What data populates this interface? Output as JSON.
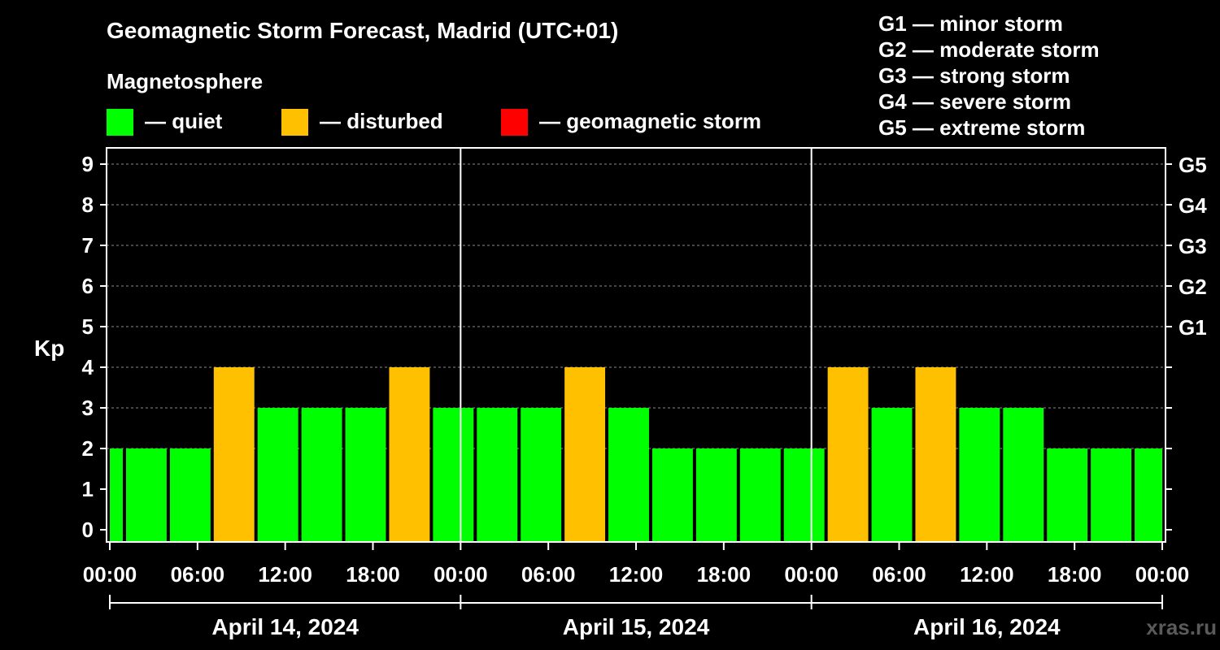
{
  "title": "Geomagnetic Storm Forecast, Madrid (UTC+01)",
  "subtitle": "Magnetosphere",
  "legend": [
    {
      "label": "— quiet",
      "color": "#00ff00"
    },
    {
      "label": "— disturbed",
      "color": "#ffc000"
    },
    {
      "label": "— geomagnetic storm",
      "color": "#ff0000"
    }
  ],
  "storm_levels": [
    "G1 — minor storm",
    "G2 — moderate storm",
    "G3 — strong storm",
    "G4 — severe storm",
    "G5 — extreme storm"
  ],
  "watermark": "xras.ru",
  "chart_data": {
    "type": "bar",
    "ylabel": "Kp",
    "ylim": [
      0,
      9
    ],
    "yticks": [
      0,
      1,
      2,
      3,
      4,
      5,
      6,
      7,
      8,
      9
    ],
    "right_axis_labels": [
      {
        "kp": 5,
        "label": "G1"
      },
      {
        "kp": 6,
        "label": "G2"
      },
      {
        "kp": 7,
        "label": "G3"
      },
      {
        "kp": 8,
        "label": "G4"
      },
      {
        "kp": 9,
        "label": "G5"
      }
    ],
    "xlim_hours": [
      0,
      72
    ],
    "xticks": [
      {
        "hour": 0,
        "label": "00:00"
      },
      {
        "hour": 6,
        "label": "06:00"
      },
      {
        "hour": 12,
        "label": "12:00"
      },
      {
        "hour": 18,
        "label": "18:00"
      },
      {
        "hour": 24,
        "label": "00:00"
      },
      {
        "hour": 30,
        "label": "06:00"
      },
      {
        "hour": 36,
        "label": "12:00"
      },
      {
        "hour": 42,
        "label": "18:00"
      },
      {
        "hour": 48,
        "label": "00:00"
      },
      {
        "hour": 54,
        "label": "06:00"
      },
      {
        "hour": 60,
        "label": "12:00"
      },
      {
        "hour": 66,
        "label": "18:00"
      },
      {
        "hour": 72,
        "label": "00:00"
      }
    ],
    "days": [
      "April 14, 2024",
      "April 15, 2024",
      "April 16, 2024"
    ],
    "grid": "horizontal dashed",
    "bars": [
      {
        "start": 0,
        "end": 1,
        "kp": 2,
        "status": "quiet"
      },
      {
        "start": 1,
        "end": 4,
        "kp": 2,
        "status": "quiet"
      },
      {
        "start": 4,
        "end": 7,
        "kp": 2,
        "status": "quiet"
      },
      {
        "start": 7,
        "end": 10,
        "kp": 4,
        "status": "disturbed"
      },
      {
        "start": 10,
        "end": 13,
        "kp": 3,
        "status": "quiet"
      },
      {
        "start": 13,
        "end": 16,
        "kp": 3,
        "status": "quiet"
      },
      {
        "start": 16,
        "end": 19,
        "kp": 3,
        "status": "quiet"
      },
      {
        "start": 19,
        "end": 22,
        "kp": 4,
        "status": "disturbed"
      },
      {
        "start": 22,
        "end": 25,
        "kp": 3,
        "status": "quiet"
      },
      {
        "start": 25,
        "end": 28,
        "kp": 3,
        "status": "quiet"
      },
      {
        "start": 28,
        "end": 31,
        "kp": 3,
        "status": "quiet"
      },
      {
        "start": 31,
        "end": 34,
        "kp": 4,
        "status": "disturbed"
      },
      {
        "start": 34,
        "end": 37,
        "kp": 3,
        "status": "quiet"
      },
      {
        "start": 37,
        "end": 40,
        "kp": 2,
        "status": "quiet"
      },
      {
        "start": 40,
        "end": 43,
        "kp": 2,
        "status": "quiet"
      },
      {
        "start": 43,
        "end": 46,
        "kp": 2,
        "status": "quiet"
      },
      {
        "start": 46,
        "end": 49,
        "kp": 2,
        "status": "quiet"
      },
      {
        "start": 49,
        "end": 52,
        "kp": 4,
        "status": "disturbed"
      },
      {
        "start": 52,
        "end": 55,
        "kp": 3,
        "status": "quiet"
      },
      {
        "start": 55,
        "end": 58,
        "kp": 4,
        "status": "disturbed"
      },
      {
        "start": 58,
        "end": 61,
        "kp": 3,
        "status": "quiet"
      },
      {
        "start": 61,
        "end": 64,
        "kp": 3,
        "status": "quiet"
      },
      {
        "start": 64,
        "end": 67,
        "kp": 2,
        "status": "quiet"
      },
      {
        "start": 67,
        "end": 70,
        "kp": 2,
        "status": "quiet"
      },
      {
        "start": 70,
        "end": 72,
        "kp": 2,
        "status": "quiet"
      }
    ],
    "colors": {
      "quiet": "#00ff00",
      "disturbed": "#ffc000",
      "storm": "#ff0000",
      "background": "#000000",
      "axis": "#ffffff"
    }
  }
}
